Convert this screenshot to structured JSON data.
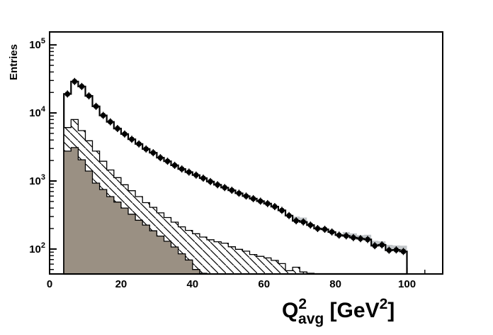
{
  "figure": {
    "background": "#ffffff",
    "ylabel": "Entries",
    "xlabel_plain": "Q^2_avg [GeV^2]",
    "xlabel_rich": {
      "base": "Q",
      "sup": "2",
      "sub": "avg",
      "unit_pre": " [GeV",
      "unit_sup": "2",
      "unit_post": "]"
    }
  },
  "chart_data": {
    "type": "histogram",
    "yscale": "log",
    "xlim": [
      0,
      110
    ],
    "ylim": [
      43,
      155000
    ],
    "grid": false,
    "legend": null,
    "title": "",
    "xlabel": "Q^2_avg [GeV^2]",
    "ylabel": "Entries",
    "x_major_ticks": [
      0,
      20,
      40,
      60,
      80,
      100
    ],
    "x_major_tick_labels": [
      "0",
      "20",
      "40",
      "60",
      "80",
      "100"
    ],
    "x_minor_tick_step": 5,
    "y_major_tick_exponents": [
      2,
      3,
      4,
      5
    ],
    "y_tick_label_base": "10",
    "bin_width": 2,
    "bin_edges_start": 4,
    "bin_centers": [
      5,
      7,
      9,
      11,
      13,
      15,
      17,
      19,
      21,
      23,
      25,
      27,
      29,
      31,
      33,
      35,
      37,
      39,
      41,
      43,
      45,
      47,
      49,
      51,
      53,
      55,
      57,
      59,
      61,
      63,
      65,
      67,
      69,
      71,
      73,
      75,
      77,
      79,
      81,
      83,
      85,
      87,
      89,
      91,
      93,
      95,
      97,
      99
    ],
    "series": [
      {
        "name": "data-points",
        "render": "markers",
        "marker": "filled-circle",
        "color": "#000000",
        "values": [
          19000,
          29000,
          24500,
          17800,
          12500,
          9200,
          7400,
          5900,
          4900,
          4100,
          3500,
          2950,
          2600,
          2200,
          1950,
          1700,
          1500,
          1350,
          1220,
          1100,
          980,
          880,
          800,
          730,
          660,
          600,
          550,
          505,
          465,
          420,
          370,
          310,
          260,
          250,
          225,
          200,
          195,
          178,
          160,
          156,
          147,
          142,
          138,
          112,
          115,
          96,
          97,
          92
        ]
      },
      {
        "name": "mc-total-outline",
        "render": "steps",
        "fill": "#ffffff",
        "stroke": "#000000",
        "stroke_width": 2.2,
        "values": [
          19000,
          29000,
          24500,
          17800,
          12500,
          9200,
          7400,
          5900,
          4900,
          4100,
          3500,
          2950,
          2600,
          2200,
          1950,
          1700,
          1500,
          1350,
          1220,
          1100,
          980,
          880,
          800,
          730,
          660,
          600,
          550,
          505,
          465,
          420,
          370,
          310,
          260,
          250,
          225,
          200,
          195,
          178,
          160,
          156,
          147,
          142,
          138,
          112,
          115,
          96,
          97,
          92
        ]
      },
      {
        "name": "mc-shadow",
        "render": "steps",
        "fill": "#c2c6c9",
        "stroke": "none",
        "stroke_width": 0,
        "values": [
          19000,
          29000,
          24500,
          17800,
          12500,
          9200,
          7400,
          5900,
          4900,
          4100,
          3500,
          2950,
          2600,
          2200,
          1950,
          1700,
          1500,
          1350,
          1220,
          1100,
          980,
          880,
          800,
          730,
          660,
          600,
          550,
          505,
          465,
          420,
          370,
          310,
          300,
          290,
          225,
          200,
          195,
          178,
          160,
          178,
          170,
          160,
          162,
          132,
          130,
          115,
          113,
          112
        ]
      },
      {
        "name": "mc-hatched",
        "render": "steps",
        "fill": "hatch",
        "stroke": "#000000",
        "stroke_width": 1.3,
        "values": [
          6100,
          8000,
          5500,
          3900,
          2750,
          1950,
          1450,
          1120,
          880,
          720,
          590,
          480,
          410,
          340,
          290,
          248,
          212,
          188,
          168,
          150,
          137,
          128,
          122,
          108,
          99,
          93,
          83,
          78,
          74,
          68,
          61,
          48,
          54,
          46,
          44,
          0,
          0,
          0,
          0,
          0,
          0,
          0,
          0,
          0,
          0,
          0,
          0,
          0
        ]
      },
      {
        "name": "mc-solid",
        "render": "steps",
        "fill": "#9a9083",
        "stroke": "#000000",
        "stroke_width": 1.3,
        "values": [
          2750,
          3100,
          2050,
          1400,
          930,
          750,
          590,
          490,
          400,
          325,
          265,
          225,
          185,
          155,
          130,
          107,
          85,
          69,
          50,
          44,
          0,
          0,
          0,
          0,
          0,
          0,
          0,
          0,
          0,
          0,
          0,
          0,
          0,
          0,
          0,
          0,
          0,
          0,
          0,
          0,
          0,
          0,
          0,
          0,
          0,
          0,
          0,
          0
        ]
      }
    ],
    "colors": {
      "axis": "#000000",
      "solid_fill": "#9a9083",
      "shadow_fill": "#c2c6c9",
      "hatch_lines": "#000000",
      "marker": "#000000",
      "background": "#ffffff"
    }
  }
}
